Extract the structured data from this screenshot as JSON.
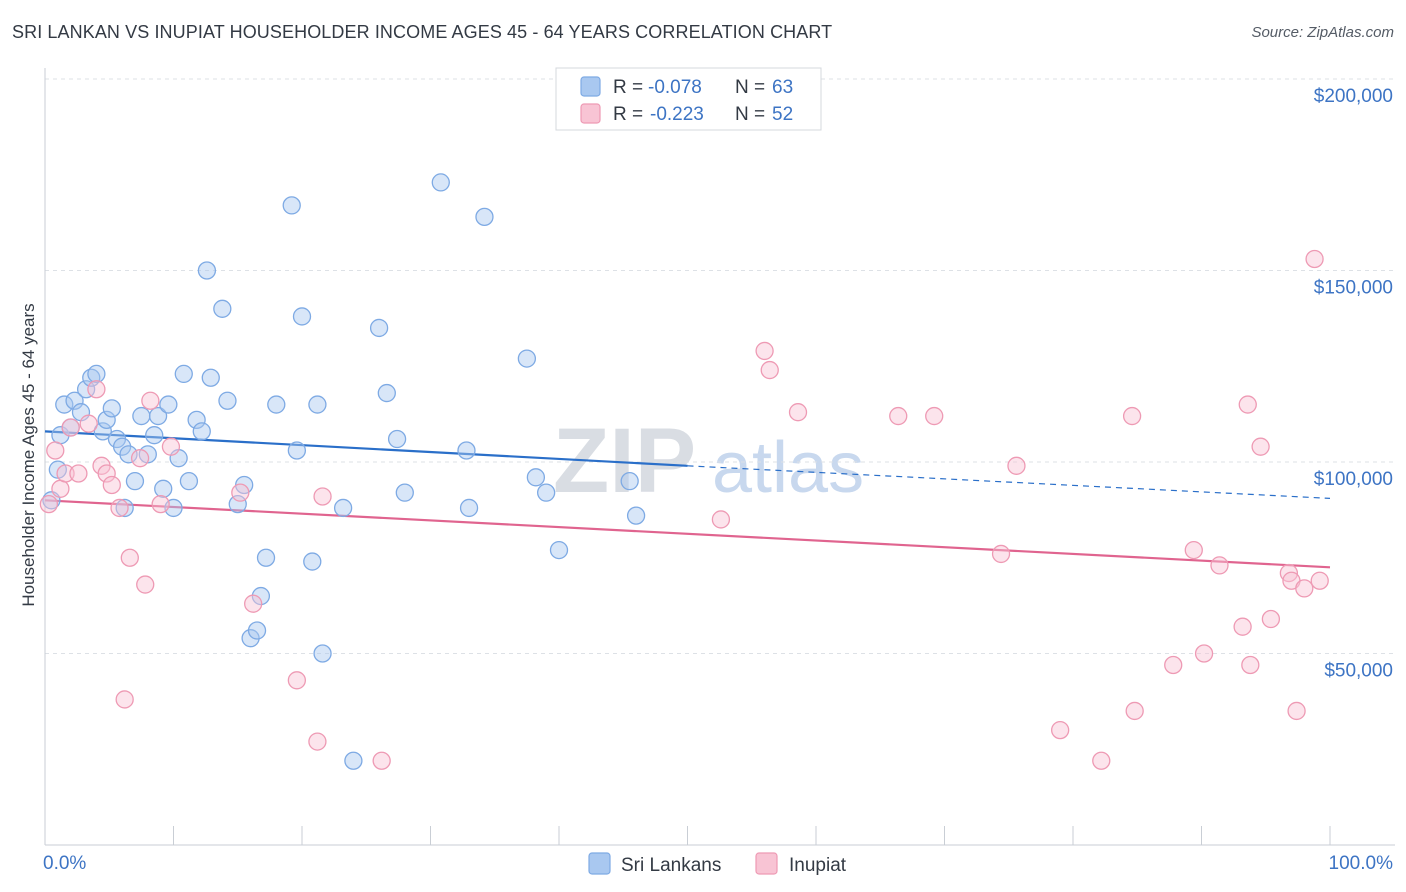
{
  "title": "SRI LANKAN VS INUPIAT HOUSEHOLDER INCOME AGES 45 - 64 YEARS CORRELATION CHART",
  "source": "Source: ZipAtlas.com",
  "watermark": {
    "zip": "ZIP",
    "atlas": "atlas"
  },
  "legend": {
    "r_label": "R =",
    "n_label": "N =",
    "rows": [
      {
        "r": "-0.078",
        "n": "63",
        "color": "#a9c8f0",
        "stroke": "#7eaae4"
      },
      {
        "r": "-0.223",
        "n": "52",
        "color": "#f8c4d4",
        "stroke": "#ee9ab4"
      }
    ]
  },
  "bottom_legend": [
    {
      "label": "Sri Lankans",
      "color": "#a9c8f0",
      "stroke": "#7eaae4"
    },
    {
      "label": "Inupiat",
      "color": "#f8c4d4",
      "stroke": "#ee9ab4"
    }
  ],
  "chart_data": {
    "type": "scatter",
    "xlabel": "",
    "ylabel": "Householder Income Ages 45 - 64 years",
    "xlim": [
      0,
      100
    ],
    "ylim": [
      0,
      200000
    ],
    "x_tick_labels": [
      "0.0%",
      "100.0%"
    ],
    "y_ticks": [
      {
        "value": 50000,
        "label": "$50,000"
      },
      {
        "value": 100000,
        "label": "$100,000"
      },
      {
        "value": 150000,
        "label": "$150,000"
      },
      {
        "value": 200000,
        "label": "$200,000"
      }
    ],
    "grid": "horizontal dashed",
    "series": [
      {
        "name": "Sri Lankans",
        "color": "#a9c8f0",
        "stroke": "#7eaae4",
        "trend_color": "#2a6fc9",
        "trend": {
          "x0": 0,
          "y0": 108000,
          "x1": 50,
          "y1": 99000,
          "dash_to_x": 100,
          "dash_to_y": 90500
        },
        "points": [
          [
            0.5,
            90000
          ],
          [
            1.0,
            98000
          ],
          [
            1.2,
            107000
          ],
          [
            1.5,
            115000
          ],
          [
            2.0,
            109000
          ],
          [
            2.3,
            116000
          ],
          [
            2.8,
            113000
          ],
          [
            3.2,
            119000
          ],
          [
            3.6,
            122000
          ],
          [
            4.0,
            123000
          ],
          [
            4.5,
            108000
          ],
          [
            4.8,
            111000
          ],
          [
            5.2,
            114000
          ],
          [
            5.6,
            106000
          ],
          [
            6.0,
            104000
          ],
          [
            6.5,
            102000
          ],
          [
            7.0,
            95000
          ],
          [
            6.2,
            88000
          ],
          [
            7.5,
            112000
          ],
          [
            8.0,
            102000
          ],
          [
            8.5,
            107000
          ],
          [
            8.8,
            112000
          ],
          [
            9.2,
            93000
          ],
          [
            9.6,
            115000
          ],
          [
            10.0,
            88000
          ],
          [
            10.4,
            101000
          ],
          [
            10.8,
            123000
          ],
          [
            11.2,
            95000
          ],
          [
            11.8,
            111000
          ],
          [
            12.2,
            108000
          ],
          [
            12.6,
            150000
          ],
          [
            12.9,
            122000
          ],
          [
            13.8,
            140000
          ],
          [
            14.2,
            116000
          ],
          [
            15.0,
            89000
          ],
          [
            15.5,
            94000
          ],
          [
            16.0,
            54000
          ],
          [
            16.5,
            56000
          ],
          [
            16.8,
            65000
          ],
          [
            17.2,
            75000
          ],
          [
            18.0,
            115000
          ],
          [
            19.2,
            167000
          ],
          [
            19.6,
            103000
          ],
          [
            20.0,
            138000
          ],
          [
            20.8,
            74000
          ],
          [
            21.2,
            115000
          ],
          [
            21.6,
            50000
          ],
          [
            23.2,
            88000
          ],
          [
            24.0,
            22000
          ],
          [
            26.0,
            135000
          ],
          [
            26.6,
            118000
          ],
          [
            27.4,
            106000
          ],
          [
            28.0,
            92000
          ],
          [
            30.8,
            173000
          ],
          [
            32.8,
            103000
          ],
          [
            33.0,
            88000
          ],
          [
            34.2,
            164000
          ],
          [
            37.5,
            127000
          ],
          [
            38.2,
            96000
          ],
          [
            39.0,
            92000
          ],
          [
            40.0,
            77000
          ],
          [
            45.5,
            95000
          ],
          [
            46.0,
            86000
          ]
        ]
      },
      {
        "name": "Inupiat",
        "color": "#f8c4d4",
        "stroke": "#ee9ab4",
        "trend_color": "#e0648f",
        "trend": {
          "x0": 0,
          "y0": 90000,
          "x1": 100,
          "y1": 72500
        },
        "points": [
          [
            0.3,
            89000
          ],
          [
            0.8,
            103000
          ],
          [
            1.2,
            93000
          ],
          [
            1.6,
            97000
          ],
          [
            2.0,
            109000
          ],
          [
            2.6,
            97000
          ],
          [
            3.4,
            110000
          ],
          [
            4.0,
            119000
          ],
          [
            4.4,
            99000
          ],
          [
            4.8,
            97000
          ],
          [
            5.2,
            94000
          ],
          [
            5.8,
            88000
          ],
          [
            6.2,
            38000
          ],
          [
            6.6,
            75000
          ],
          [
            7.4,
            101000
          ],
          [
            7.8,
            68000
          ],
          [
            8.2,
            116000
          ],
          [
            9.0,
            89000
          ],
          [
            9.8,
            104000
          ],
          [
            15.2,
            92000
          ],
          [
            16.2,
            63000
          ],
          [
            19.6,
            43000
          ],
          [
            21.2,
            27000
          ],
          [
            21.6,
            91000
          ],
          [
            26.2,
            22000
          ],
          [
            52.6,
            85000
          ],
          [
            56.0,
            129000
          ],
          [
            56.4,
            124000
          ],
          [
            58.6,
            113000
          ],
          [
            66.4,
            112000
          ],
          [
            69.2,
            112000
          ],
          [
            74.4,
            76000
          ],
          [
            75.6,
            99000
          ],
          [
            79.0,
            30000
          ],
          [
            82.2,
            22000
          ],
          [
            84.6,
            112000
          ],
          [
            84.8,
            35000
          ],
          [
            87.8,
            47000
          ],
          [
            89.4,
            77000
          ],
          [
            90.2,
            50000
          ],
          [
            91.4,
            73000
          ],
          [
            93.2,
            57000
          ],
          [
            93.6,
            115000
          ],
          [
            93.8,
            47000
          ],
          [
            94.6,
            104000
          ],
          [
            95.4,
            59000
          ],
          [
            96.8,
            71000
          ],
          [
            97.0,
            69000
          ],
          [
            97.4,
            35000
          ],
          [
            98.0,
            67000
          ],
          [
            98.8,
            153000
          ],
          [
            99.2,
            69000
          ]
        ]
      }
    ]
  }
}
